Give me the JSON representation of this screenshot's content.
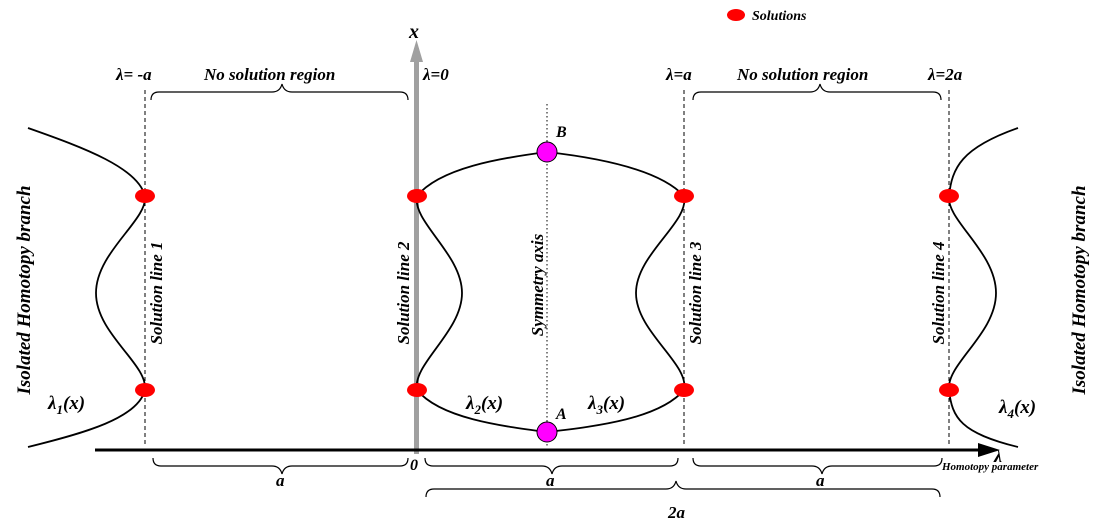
{
  "legend": {
    "solutions_label": "Solutions"
  },
  "axes": {
    "x_label": "x",
    "lambda_label": "λ",
    "lambda_caption": "Homotopy parameter",
    "origin_label": "0"
  },
  "lambda_markers": {
    "minus_a": "λ= -a",
    "zero": "λ=0",
    "a": "λ=a",
    "two_a": "λ=2a"
  },
  "regions": {
    "no_solution_left": "No solution region",
    "no_solution_right": "No solution region"
  },
  "solution_lines": {
    "line1": "Solution line 1",
    "line2": "Solution line 2",
    "line3": "Solution line 3",
    "line4": "Solution line 4"
  },
  "symmetry_axis": "Symmetry axis",
  "branches": {
    "isolated_left": "Isolated Homotopy branch",
    "isolated_right": "Isolated Homotopy branch"
  },
  "curves": {
    "lambda1": {
      "base": "λ",
      "sub": "1",
      "arg": "(x)"
    },
    "lambda2": {
      "base": "λ",
      "sub": "2",
      "arg": "(x)"
    },
    "lambda3": {
      "base": "λ",
      "sub": "3",
      "arg": "(x)"
    },
    "lambda4": {
      "base": "λ",
      "sub": "4",
      "arg": "(x)"
    }
  },
  "points": {
    "A": "A",
    "B": "B"
  },
  "spans": {
    "a_1": "a",
    "a_2": "a",
    "a_3": "a",
    "two_a": "2a"
  },
  "colors": {
    "solution_dot": "#ff0000",
    "symmetry_point": "#ff00ff",
    "x_axis_bar": "#a0a0a0",
    "ink": "#000000"
  }
}
